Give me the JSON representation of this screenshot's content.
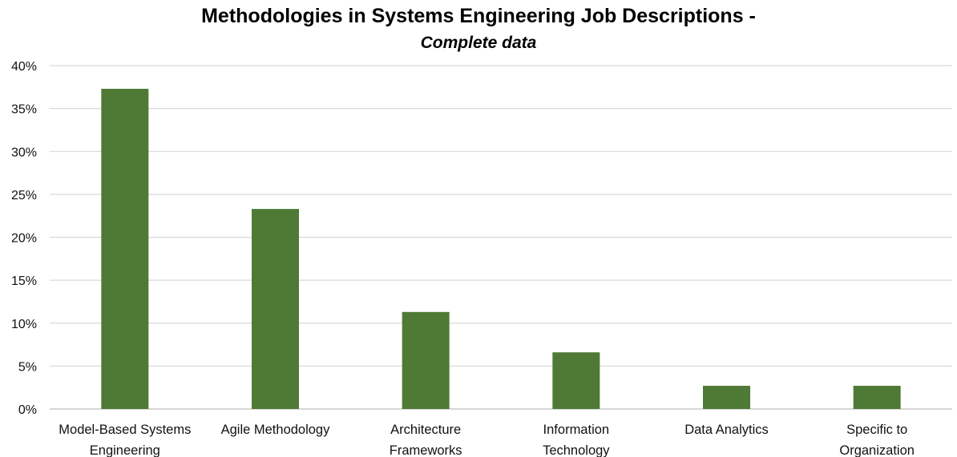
{
  "chart_data": {
    "type": "bar",
    "title": "Methodologies in Systems Engineering Job Descriptions -",
    "subtitle": "Complete data",
    "categories": [
      [
        "Model-Based Systems",
        "Engineering"
      ],
      [
        "Agile Methodology"
      ],
      [
        "Architecture",
        "Frameworks"
      ],
      [
        "Information",
        "Technology"
      ],
      [
        "Data Analytics"
      ],
      [
        "Specific to",
        "Organization"
      ]
    ],
    "values": [
      37.3,
      23.3,
      11.3,
      6.6,
      2.7,
      2.7
    ],
    "ylim": [
      0,
      40
    ],
    "yticks": [
      0,
      5,
      10,
      15,
      20,
      25,
      30,
      35,
      40
    ],
    "ytick_format": "%",
    "grid": true,
    "bar_color": "#4e7a36",
    "grid_color": "#d9d9d9"
  }
}
